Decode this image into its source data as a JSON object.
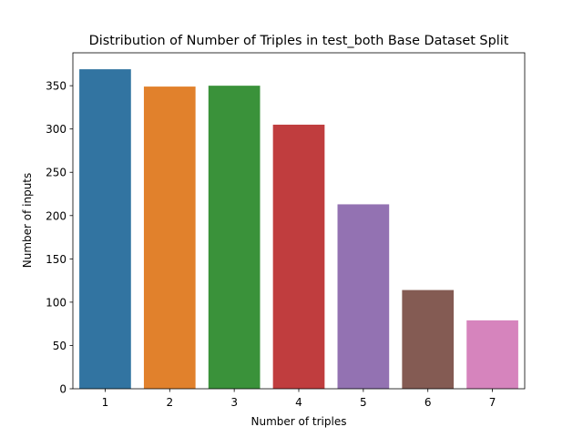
{
  "chart_data": {
    "type": "bar",
    "title": "Distribution of Number of Triples in test_both Base Dataset Split",
    "xlabel": "Number of triples",
    "ylabel": "Number of inputs",
    "categories": [
      "1",
      "2",
      "3",
      "4",
      "5",
      "6",
      "7"
    ],
    "values": [
      369,
      349,
      350,
      305,
      213,
      114,
      79
    ],
    "colors": [
      "#3274a1",
      "#e1812c",
      "#3a923a",
      "#c03d3e",
      "#9372b2",
      "#845b53",
      "#d684bd"
    ],
    "ylim": [
      0,
      388
    ],
    "yticks": [
      0,
      50,
      100,
      150,
      200,
      250,
      300,
      350
    ],
    "grid": false,
    "legend": "none"
  }
}
